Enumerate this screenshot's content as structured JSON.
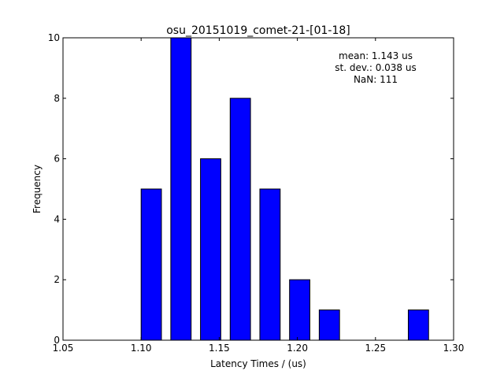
{
  "chart_data": {
    "type": "bar",
    "title": "osu_20151019_comet-21-[01-18]",
    "xlabel": "Latency Times / (us)",
    "ylabel": "Frequency",
    "xlim": [
      1.05,
      1.3
    ],
    "ylim": [
      0,
      10
    ],
    "grid": false,
    "legend": "none",
    "bar_width": 0.013,
    "x_ticks": [
      {
        "value": 1.05,
        "label": "1.05"
      },
      {
        "value": 1.1,
        "label": "1.10"
      },
      {
        "value": 1.15,
        "label": "1.15"
      },
      {
        "value": 1.2,
        "label": "1.20"
      },
      {
        "value": 1.25,
        "label": "1.25"
      },
      {
        "value": 1.3,
        "label": "1.30"
      }
    ],
    "y_ticks": [
      {
        "value": 0,
        "label": "0"
      },
      {
        "value": 2,
        "label": "2"
      },
      {
        "value": 4,
        "label": "4"
      },
      {
        "value": 6,
        "label": "6"
      },
      {
        "value": 8,
        "label": "8"
      },
      {
        "value": 10,
        "label": "10"
      }
    ],
    "x": [
      1.1,
      1.119,
      1.138,
      1.157,
      1.176,
      1.195,
      1.214,
      1.271
    ],
    "values": [
      5,
      10,
      6,
      8,
      5,
      2,
      1,
      1
    ],
    "annotations": [
      "mean: 1.143 us",
      "st. dev.: 0.038 us",
      "NaN: 111"
    ],
    "colors": {
      "bar_fill": "#0000ff",
      "bar_edge": "#000000",
      "axes": "#000000",
      "background": "#ffffff"
    }
  }
}
